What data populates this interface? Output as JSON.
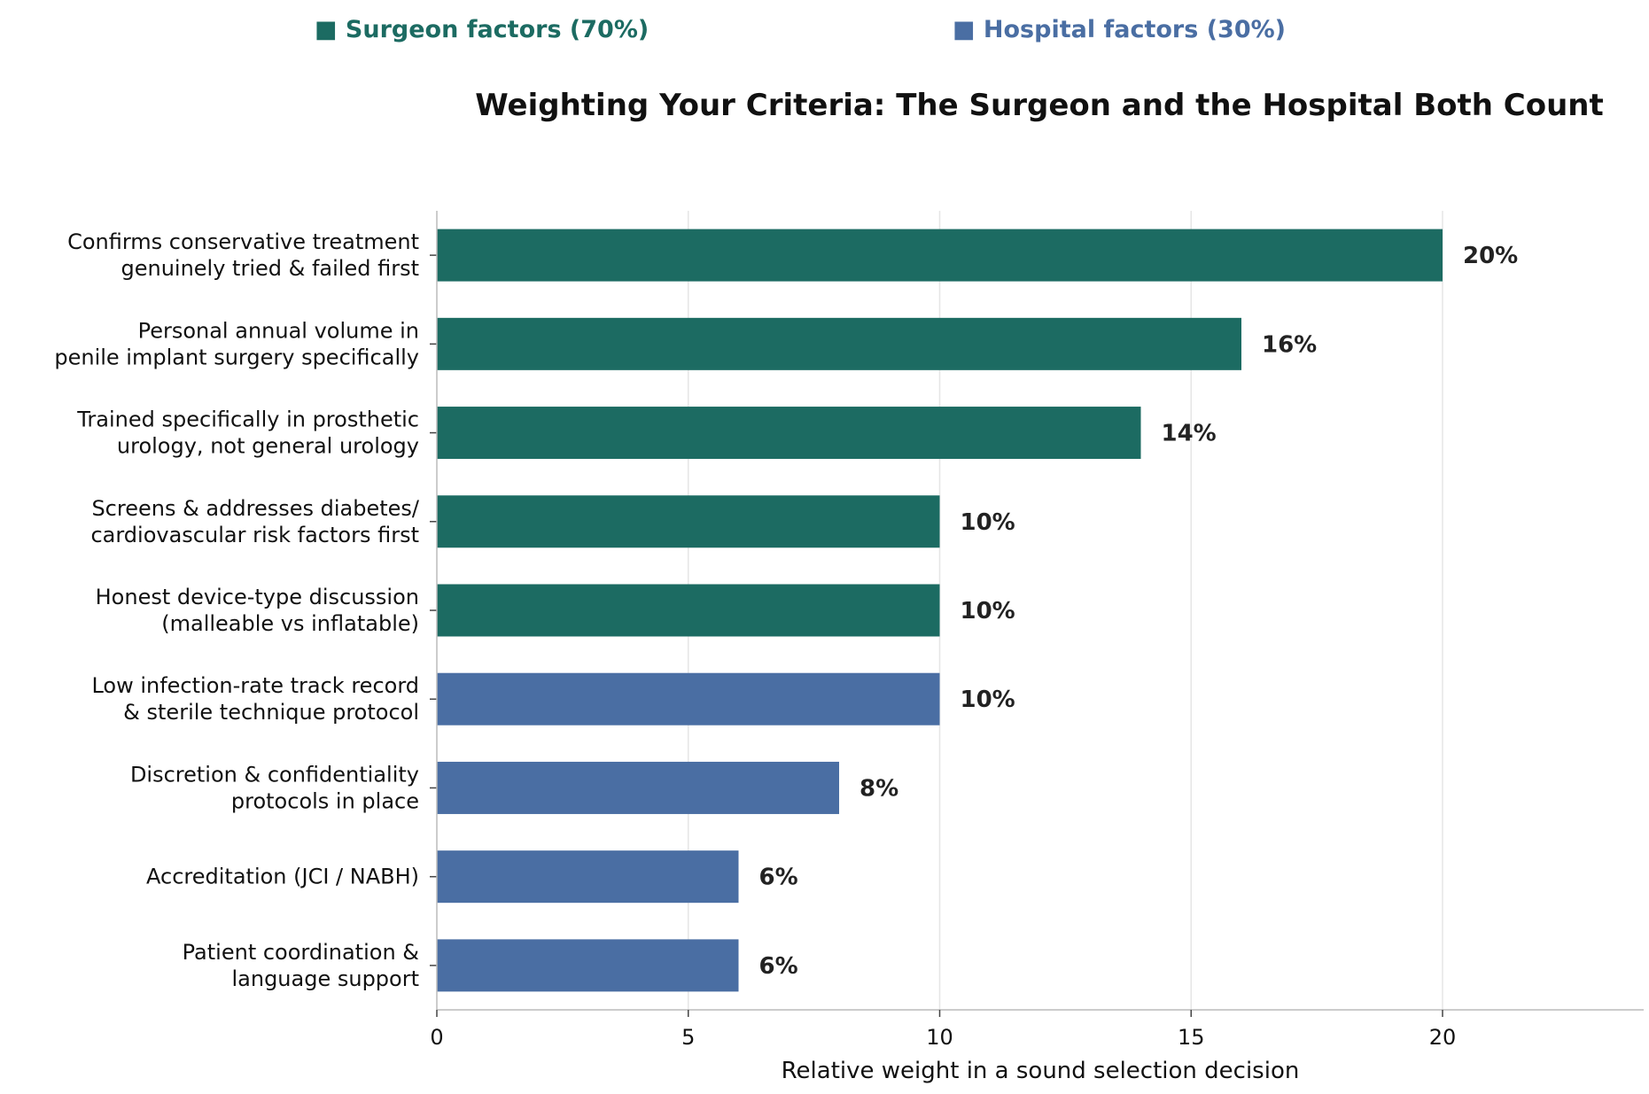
{
  "chart_data": {
    "type": "bar",
    "orientation": "horizontal",
    "title": "Weighting Your Criteria: The Surgeon and the Hospital Both Count",
    "xlabel": "Relative weight in a sound selection decision",
    "ylabel": "",
    "xlim": [
      0,
      24
    ],
    "xticks": [
      0,
      5,
      10,
      15,
      20
    ],
    "grid": "vertical",
    "legend_position": "top",
    "legend": [
      {
        "label": "■ Surgeon factors (70%)",
        "color": "#1c6b62"
      },
      {
        "label": "■ Hospital factors (30%)",
        "color": "#4a6ea3"
      }
    ],
    "categories": [
      [
        "Confirms conservative treatment",
        "genuinely tried & failed first"
      ],
      [
        "Personal annual volume in",
        "penile implant surgery specifically"
      ],
      [
        "Trained specifically in prosthetic",
        "urology, not general urology"
      ],
      [
        "Screens & addresses diabetes/",
        "cardiovascular risk factors first"
      ],
      [
        "Honest device-type discussion",
        "(malleable vs inflatable)"
      ],
      [
        "Low infection-rate track record",
        "& sterile technique protocol"
      ],
      [
        "Discretion & confidentiality",
        "protocols in place"
      ],
      [
        "Accreditation (JCI / NABH)"
      ],
      [
        "Patient coordination &",
        "language support"
      ]
    ],
    "values": [
      20,
      16,
      14,
      10,
      10,
      10,
      8,
      6,
      6
    ],
    "value_labels": [
      "20%",
      "16%",
      "14%",
      "10%",
      "10%",
      "10%",
      "8%",
      "6%",
      "6%"
    ],
    "groups": [
      "surgeon",
      "surgeon",
      "surgeon",
      "surgeon",
      "surgeon",
      "hospital",
      "hospital",
      "hospital",
      "hospital"
    ],
    "colors": {
      "surgeon": "#1c6b62",
      "hospital": "#4a6ea3"
    }
  }
}
